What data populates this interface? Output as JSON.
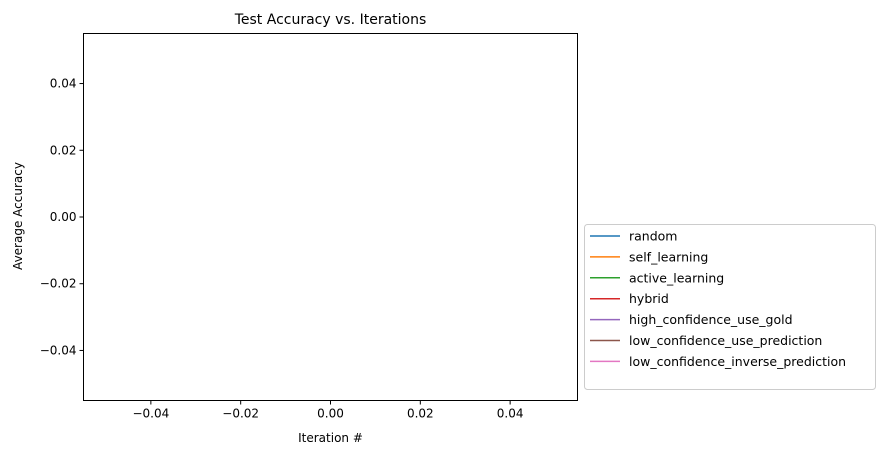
{
  "chart_data": {
    "type": "line",
    "title": "Test Accuracy vs. Iterations",
    "xlabel": "Iteration #",
    "ylabel": "Average Accuracy",
    "xlim": [
      -0.055,
      0.055
    ],
    "ylim": [
      -0.055,
      0.055
    ],
    "x_ticks": [
      -0.04,
      -0.02,
      0.0,
      0.02,
      0.04
    ],
    "x_tick_labels": [
      "−0.04",
      "−0.02",
      "0.00",
      "0.02",
      "0.04"
    ],
    "y_ticks": [
      0.04,
      0.02,
      0.0,
      -0.02,
      -0.04
    ],
    "y_tick_labels": [
      "0.04",
      "0.02",
      "0.00",
      "−0.02",
      "−0.04"
    ],
    "grid": false,
    "legend_position": "outside-right",
    "series": [
      {
        "name": "random",
        "color": "#1f77b4",
        "x": [],
        "y": []
      },
      {
        "name": "self_learning",
        "color": "#ff7f0e",
        "x": [],
        "y": []
      },
      {
        "name": "active_learning",
        "color": "#2ca02c",
        "x": [],
        "y": []
      },
      {
        "name": "hybrid",
        "color": "#d62728",
        "x": [],
        "y": []
      },
      {
        "name": "high_confidence_use_gold",
        "color": "#9467bd",
        "x": [],
        "y": []
      },
      {
        "name": "low_confidence_use_prediction",
        "color": "#8c564b",
        "x": [],
        "y": []
      },
      {
        "name": "low_confidence_inverse_prediction",
        "color": "#e377c2",
        "x": [],
        "y": []
      }
    ]
  }
}
